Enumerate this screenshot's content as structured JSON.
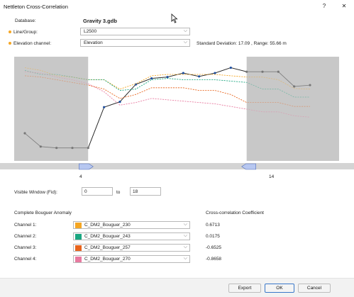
{
  "window": {
    "title": "Nettleton Cross-Correlation",
    "help_label": "?",
    "close_label": "✕"
  },
  "database": {
    "label": "Database:",
    "value": "Gravity 3.gdb"
  },
  "line_group": {
    "label": "Line/Group:",
    "value": "L2500"
  },
  "elevation": {
    "label": "Elevation channel:",
    "value": "Elevation"
  },
  "stats": "Standard Deviation: 17.09 , Range: 55.66 m",
  "window_markers": {
    "left": "4",
    "right": "14"
  },
  "visible_window": {
    "label": "Visible Window (Fid):",
    "from": "0",
    "to_label": "to",
    "to": "18"
  },
  "section": {
    "left_header": "Complete Bouguer Anomaly",
    "right_header": "Cross-correlation Coefficient"
  },
  "channels": [
    {
      "label": "Channel 1:",
      "name": "C_DM2_Bouguer_230",
      "color": "#f5a623",
      "coef": "0.6713"
    },
    {
      "label": "Channel 2:",
      "name": "C_DM2_Bouguer_243",
      "color": "#1aa680",
      "coef": "0.0175"
    },
    {
      "label": "Channel 3:",
      "name": "C_DM2_Bouguer_257",
      "color": "#e8641c",
      "coef": "-0.6525"
    },
    {
      "label": "Channel 4:",
      "name": "C_DM2_Bouguer_270",
      "color": "#e87aa0",
      "coef": "-0.8658"
    }
  ],
  "buttons": {
    "export": "Export",
    "ok": "OK",
    "cancel": "Cancel"
  },
  "chart_data": {
    "type": "line",
    "x": [
      0,
      1,
      2,
      3,
      4,
      5,
      6,
      7,
      8,
      9,
      10,
      11,
      12,
      13,
      14,
      15,
      16,
      17,
      18
    ],
    "visible_window": [
      4,
      14
    ],
    "series": [
      {
        "color": "#222222",
        "markers": true,
        "values": [
          76,
          96,
          98,
          98,
          98,
          37,
          29,
          3,
          -6,
          -8,
          -14,
          -9,
          -14,
          -22,
          -16,
          -16,
          -16,
          6,
          4
        ]
      },
      {
        "color": "#f5a623",
        "values": [
          -22,
          -18,
          -10,
          -8,
          -4,
          -4,
          10,
          2,
          -10,
          -12,
          -12,
          -12,
          -12,
          -10,
          -8,
          -8,
          -4,
          9,
          10
        ]
      },
      {
        "color": "#1aa680",
        "values": [
          -18,
          -12,
          -12,
          -8,
          -4,
          -4,
          12,
          10,
          -4,
          -6,
          -4,
          -4,
          -4,
          -2,
          0,
          10,
          10,
          22,
          22
        ]
      },
      {
        "color": "#e8641c",
        "values": [
          -10,
          -8,
          -4,
          0,
          4,
          10,
          24,
          18,
          8,
          8,
          8,
          12,
          12,
          18,
          30,
          30,
          30,
          36,
          36
        ]
      },
      {
        "color": "#e87aa0",
        "values": [
          -16,
          -14,
          -8,
          -4,
          2,
          14,
          34,
          30,
          24,
          26,
          28,
          30,
          32,
          36,
          40,
          44,
          44,
          50,
          52
        ]
      }
    ]
  }
}
